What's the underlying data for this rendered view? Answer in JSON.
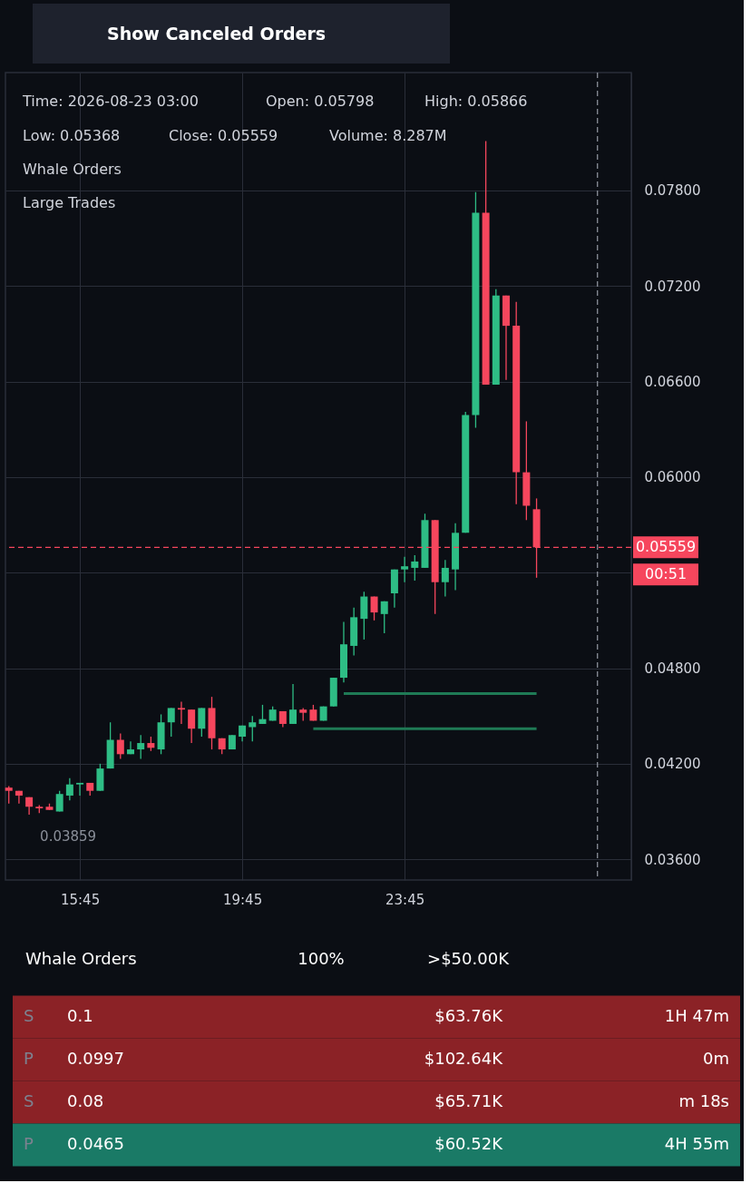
{
  "chart_data": {
    "type": "candlestick",
    "x": [
      "2026-08-22T14:00",
      "2026-08-22T14:15",
      "2026-08-22T14:30",
      "2026-08-22T14:45",
      "2026-08-22T15:00",
      "2026-08-22T15:15",
      "2026-08-22T15:30",
      "2026-08-22T15:45",
      "2026-08-22T16:00",
      "2026-08-22T16:15",
      "2026-08-22T16:30",
      "2026-08-22T16:45",
      "2026-08-22T17:00",
      "2026-08-22T17:15",
      "2026-08-22T17:30",
      "2026-08-22T17:45",
      "2026-08-22T18:00",
      "2026-08-22T18:15",
      "2026-08-22T18:30",
      "2026-08-22T18:45",
      "2026-08-22T19:00",
      "2026-08-22T19:15",
      "2026-08-22T19:30",
      "2026-08-22T19:45",
      "2026-08-22T20:00",
      "2026-08-22T20:15",
      "2026-08-22T20:30",
      "2026-08-22T20:45",
      "2026-08-22T21:00",
      "2026-08-22T21:15",
      "2026-08-22T21:30",
      "2026-08-22T21:45",
      "2026-08-22T22:00",
      "2026-08-22T22:15",
      "2026-08-22T22:30",
      "2026-08-22T22:45",
      "2026-08-22T23:00",
      "2026-08-22T23:15",
      "2026-08-22T23:30",
      "2026-08-22T23:45",
      "2026-08-23T00:00",
      "2026-08-23T00:15",
      "2026-08-23T00:30",
      "2026-08-23T00:45",
      "2026-08-23T01:00",
      "2026-08-23T01:15",
      "2026-08-23T01:30",
      "2026-08-23T01:45",
      "2026-08-23T02:00",
      "2026-08-23T02:15",
      "2026-08-23T02:30",
      "2026-08-23T02:45",
      "2026-08-23T03:00"
    ],
    "ohlc": [
      [
        0.0405,
        0.0406,
        0.0395,
        0.0403
      ],
      [
        0.0403,
        0.0403,
        0.0395,
        0.04
      ],
      [
        0.0399,
        0.0399,
        0.0388,
        0.0393
      ],
      [
        0.0393,
        0.0394,
        0.0389,
        0.0392
      ],
      [
        0.0393,
        0.0395,
        0.0391,
        0.0391
      ],
      [
        0.039,
        0.0403,
        0.039,
        0.0401
      ],
      [
        0.04,
        0.0411,
        0.0397,
        0.0407
      ],
      [
        0.0407,
        0.0408,
        0.04,
        0.0408
      ],
      [
        0.0408,
        0.0408,
        0.04,
        0.0403
      ],
      [
        0.0403,
        0.042,
        0.0403,
        0.0417
      ],
      [
        0.0417,
        0.0446,
        0.0417,
        0.0435
      ],
      [
        0.0435,
        0.0439,
        0.0423,
        0.0426
      ],
      [
        0.0426,
        0.0434,
        0.0426,
        0.0429
      ],
      [
        0.0429,
        0.0438,
        0.0423,
        0.0433
      ],
      [
        0.0433,
        0.0437,
        0.0428,
        0.043
      ],
      [
        0.0429,
        0.0451,
        0.0426,
        0.0446
      ],
      [
        0.0446,
        0.0455,
        0.0437,
        0.0455
      ],
      [
        0.0455,
        0.0459,
        0.0445,
        0.0454
      ],
      [
        0.0454,
        0.0454,
        0.0433,
        0.0442
      ],
      [
        0.0442,
        0.0455,
        0.0437,
        0.0455
      ],
      [
        0.0455,
        0.0462,
        0.0429,
        0.0436
      ],
      [
        0.0436,
        0.0436,
        0.0426,
        0.0429
      ],
      [
        0.0429,
        0.0438,
        0.0429,
        0.0438
      ],
      [
        0.0437,
        0.0444,
        0.0434,
        0.0444
      ],
      [
        0.0443,
        0.045,
        0.0434,
        0.0446
      ],
      [
        0.0445,
        0.0457,
        0.0445,
        0.0448
      ],
      [
        0.0447,
        0.0456,
        0.0447,
        0.0454
      ],
      [
        0.0453,
        0.0453,
        0.0443,
        0.0445
      ],
      [
        0.0445,
        0.047,
        0.0445,
        0.0454
      ],
      [
        0.0454,
        0.0455,
        0.0447,
        0.0452
      ],
      [
        0.0454,
        0.0457,
        0.0447,
        0.0447
      ],
      [
        0.0447,
        0.0456,
        0.0447,
        0.0456
      ],
      [
        0.0456,
        0.0474,
        0.0456,
        0.0474
      ],
      [
        0.0474,
        0.0509,
        0.0471,
        0.0495
      ],
      [
        0.0494,
        0.0518,
        0.0488,
        0.0512
      ],
      [
        0.0511,
        0.0528,
        0.0498,
        0.0525
      ],
      [
        0.0525,
        0.0525,
        0.051,
        0.0515
      ],
      [
        0.0514,
        0.0522,
        0.0502,
        0.0522
      ],
      [
        0.0527,
        0.0542,
        0.0518,
        0.0542
      ],
      [
        0.0542,
        0.055,
        0.0534,
        0.0544
      ],
      [
        0.0543,
        0.0551,
        0.0535,
        0.0547
      ],
      [
        0.0543,
        0.0577,
        0.0543,
        0.0573
      ],
      [
        0.0573,
        0.0573,
        0.0514,
        0.0534
      ],
      [
        0.0534,
        0.0548,
        0.0525,
        0.0543
      ],
      [
        0.0542,
        0.0571,
        0.0529,
        0.0565
      ],
      [
        0.0565,
        0.0641,
        0.0565,
        0.0639
      ],
      [
        0.0639,
        0.0779,
        0.0631,
        0.0766
      ],
      [
        0.0766,
        0.0811,
        0.0658,
        0.0658
      ],
      [
        0.0658,
        0.0718,
        0.0658,
        0.0714
      ],
      [
        0.0714,
        0.0714,
        0.0661,
        0.0695
      ],
      [
        0.0695,
        0.071,
        0.0583,
        0.0603
      ],
      [
        0.0603,
        0.0635,
        0.0573,
        0.0582
      ],
      [
        0.05798,
        0.05866,
        0.05368,
        0.05559
      ]
    ],
    "colors": [
      "#f6465d",
      "#f6465d",
      "#f6465d",
      "#f6465d",
      "#f6465d",
      "#2ebd85",
      "#2ebd85",
      "#2ebd85",
      "#f6465d",
      "#2ebd85",
      "#2ebd85",
      "#f6465d",
      "#2ebd85",
      "#2ebd85",
      "#f6465d",
      "#2ebd85",
      "#2ebd85",
      "#f6465d",
      "#f6465d",
      "#2ebd85",
      "#f6465d",
      "#f6465d",
      "#2ebd85",
      "#2ebd85",
      "#2ebd85",
      "#2ebd85",
      "#2ebd85",
      "#f6465d",
      "#2ebd85",
      "#f6465d",
      "#f6465d",
      "#2ebd85",
      "#2ebd85",
      "#2ebd85",
      "#2ebd85",
      "#2ebd85",
      "#f6465d",
      "#2ebd85",
      "#2ebd85",
      "#2ebd85",
      "#2ebd85",
      "#2ebd85",
      "#f6465d",
      "#2ebd85",
      "#2ebd85",
      "#2ebd85",
      "#2ebd85",
      "#f6465d",
      "#2ebd85",
      "#f6465d",
      "#f6465d",
      "#f6465d",
      "#f6465d"
    ],
    "series": [
      {
        "type": "line",
        "color": "#1f7a55",
        "x": [
          "2026-08-22T22:15",
          "2026-08-23T03:00"
        ],
        "values": [
          0.0464,
          0.0464
        ]
      },
      {
        "type": "line",
        "color": "#1f7a55",
        "x": [
          "2026-08-22T21:30",
          "2026-08-23T03:00"
        ],
        "values": [
          0.0442,
          0.0442
        ]
      }
    ],
    "xlim": [
      "2026-08-22T13:55",
      "2026-08-23T05:20"
    ],
    "xticks": [
      {
        "value": "2026-08-22T15:45",
        "label": "15:45"
      },
      {
        "value": "2026-08-22T19:45",
        "label": "19:45"
      },
      {
        "value": "2026-08-22T23:45",
        "label": "23:45"
      }
    ],
    "ylim": [
      0.0347,
      0.0854
    ],
    "yticks": [
      {
        "value": 0.036,
        "label": "0.03600"
      },
      {
        "value": 0.042,
        "label": "0.04200"
      },
      {
        "value": 0.048,
        "label": "0.04800"
      },
      {
        "value": 0.054,
        "label": null
      },
      {
        "value": 0.06,
        "label": "0.06000"
      },
      {
        "value": 0.066,
        "label": "0.06600"
      },
      {
        "value": 0.072,
        "label": "0.07200"
      },
      {
        "value": 0.078,
        "label": "0.07800"
      }
    ],
    "grid": true,
    "ref_lines": [
      {
        "axis": "y",
        "value": 0.05559,
        "label": "0.05559",
        "color": "#f6465d",
        "line_style": "dashed"
      },
      {
        "axis": "x",
        "value": "2026-08-23T04:30",
        "label": null,
        "color": "#8a8f99",
        "line_style": "dashed"
      }
    ],
    "annotations": [
      "Show Canceled Orders",
      "Time: 2026-08-23 03:00",
      "Open: 0.05798",
      "High: 0.05866",
      "Low: 0.05368",
      "Close: 0.05559",
      "Volume: 8.287M",
      "Whale Orders",
      "Large Trades",
      {
        "text": "0.03859",
        "x": "2026-08-22T14:30",
        "y": 0.03859
      },
      "00:51",
      "Whale Orders",
      "100%",
      ">$50.00K",
      "S",
      "0.1",
      "$63.76K",
      "1H 47m",
      "P",
      "0.0997",
      "$102.64K",
      "0m",
      "S",
      "0.08",
      "$65.71K",
      "m 18s",
      "P",
      "0.0465",
      "$60.52K",
      "4H 55m"
    ]
  }
}
